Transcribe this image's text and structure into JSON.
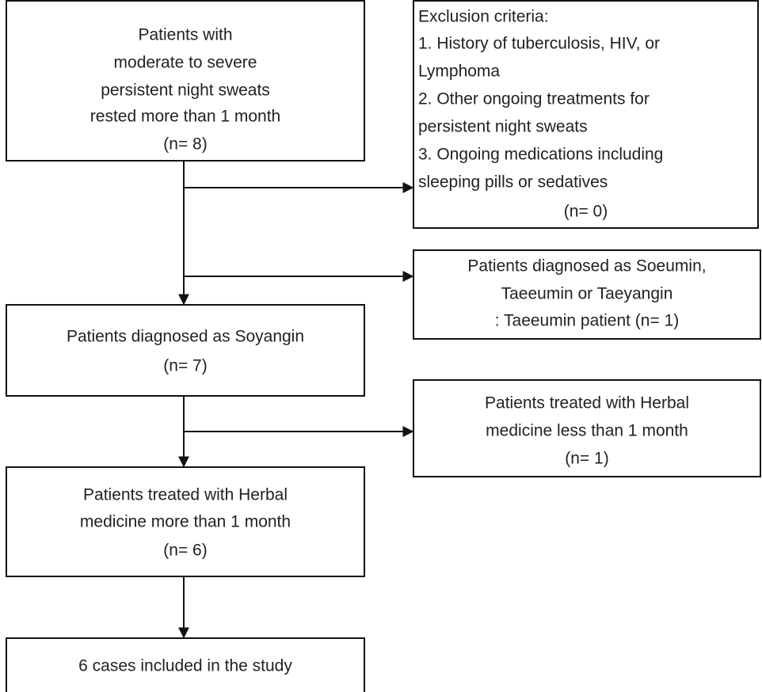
{
  "nodes": [
    {
      "lines": [
        "Patients with",
        "moderate to severe",
        "persistent night sweats",
        "rested more than 1 month",
        "(n= 8)"
      ]
    },
    {
      "lines": [
        "Exclusion criteria:",
        "1. History of tuberculosis, HIV, or",
        "Lymphoma",
        "2. Other ongoing treatments for",
        "persistent night sweats",
        "3. Ongoing medications including",
        "sleeping pills or sedatives",
        "(n= 0)"
      ]
    },
    {
      "lines": [
        "Patients diagnosed as Soeumin,",
        "Taeeumin or Taeyangin",
        ": Taeeumin patient (n= 1)"
      ]
    },
    {
      "lines": [
        "Patients diagnosed as Soyangin",
        "(n= 7)"
      ]
    },
    {
      "lines": [
        "Patients treated with Herbal",
        "medicine less than 1 month",
        "(n= 1)"
      ]
    },
    {
      "lines": [
        "Patients treated with Herbal",
        "medicine more than 1 month",
        "(n= 6)"
      ]
    },
    {
      "lines": [
        "6 cases included in the study"
      ]
    }
  ]
}
